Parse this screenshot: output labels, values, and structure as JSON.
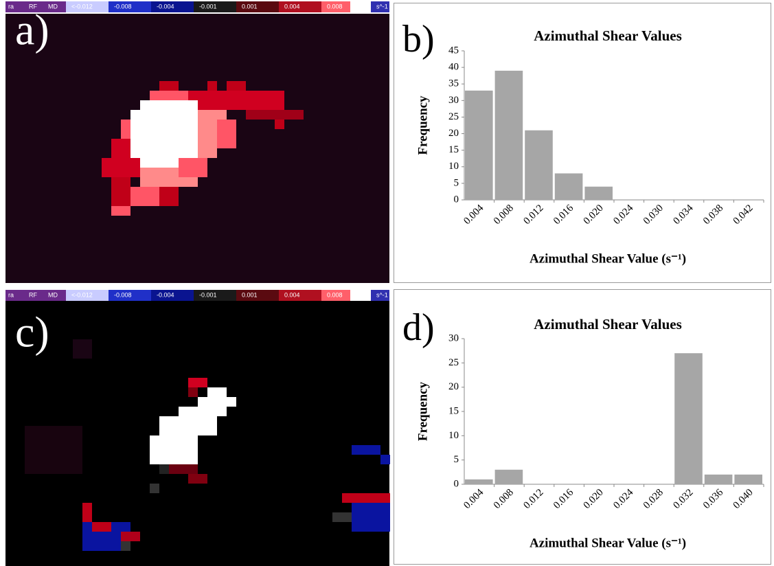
{
  "radar_panels": [
    {
      "label": "a)",
      "colorbar": [
        "ra",
        "RF",
        "MD",
        "<-0.012",
        "-0.008",
        "-0.004",
        "-0.001",
        "0.001",
        "0.004",
        "0.008",
        "s^-1"
      ]
    },
    {
      "label": "c)",
      "colorbar": [
        "ra",
        "RF",
        "MD",
        "<-0.012",
        "-0.008",
        "-0.004",
        "-0.001",
        "0.001",
        "0.004",
        "0.008",
        "s^-1"
      ]
    }
  ],
  "chart_data": [
    {
      "type": "bar",
      "panel_label": "b)",
      "title": "Azimuthal Shear Values",
      "x_label": "Azimuthal Shear Value (s⁻¹)",
      "y_label": "Frequency",
      "categories": [
        "0.004",
        "0.008",
        "0.012",
        "0.016",
        "0.020",
        "0.024",
        "0.030",
        "0.034",
        "0.038",
        "0.042"
      ],
      "values": [
        33,
        39,
        21,
        8,
        4,
        0,
        0,
        0,
        0,
        0
      ],
      "color": "#a6a6a6",
      "ylim": [
        0,
        45
      ],
      "yticks": [
        0,
        5,
        10,
        15,
        20,
        25,
        30,
        35,
        40,
        45
      ]
    },
    {
      "type": "bar",
      "panel_label": "d)",
      "title": "Azimuthal Shear Values",
      "x_label": "Azimuthal Shear Value (s⁻¹)",
      "y_label": "Frequency",
      "categories": [
        "0.004",
        "0.008",
        "0.012",
        "0.016",
        "0.020",
        "0.024",
        "0.028",
        "0.032",
        "0.036",
        "0.040"
      ],
      "values": [
        1,
        3,
        0,
        0,
        0,
        0,
        0,
        27,
        2,
        2
      ],
      "color": "#a6a6a6",
      "ylim": [
        0,
        30
      ],
      "yticks": [
        0,
        5,
        10,
        15,
        20,
        25,
        30
      ]
    }
  ]
}
